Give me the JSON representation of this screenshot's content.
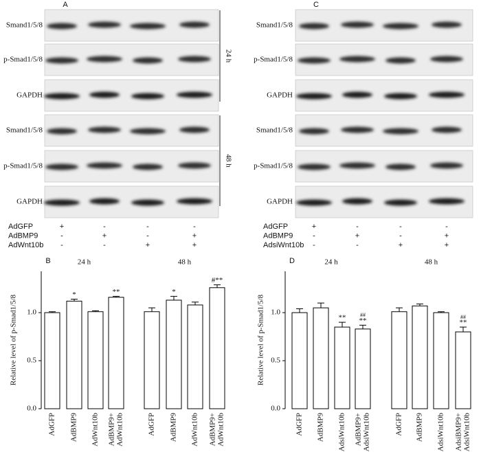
{
  "blots": [
    {
      "panel": "A",
      "rows": [
        "Smand1/5/8",
        "p-Smad1/5/8",
        "GAPDH",
        "Smand1/5/8",
        "p-Smad1/5/8",
        "GAPDH"
      ],
      "time_labels": [
        "24 h",
        "48 h"
      ],
      "treatments": [
        {
          "name": "AdGFP",
          "signs": [
            "+",
            "-",
            "-",
            "-"
          ]
        },
        {
          "name": "AdBMP9",
          "signs": [
            "-",
            "+",
            "-",
            "+"
          ]
        },
        {
          "name": "AdWnt10b",
          "signs": [
            "-",
            "-",
            "+",
            "+"
          ]
        }
      ]
    },
    {
      "panel": "C",
      "rows": [
        "Smand1/5/8",
        "p-Smad1/5/8",
        "GAPDH",
        "Smand1/5/8",
        "p-Smad1/5/8",
        "GAPDH"
      ],
      "treatments": [
        {
          "name": "AdGFP",
          "signs": [
            "+",
            "-",
            "-",
            "-"
          ]
        },
        {
          "name": "AdBMP9",
          "signs": [
            "-",
            "+",
            "-",
            "+"
          ]
        },
        {
          "name": "AdsiWnt10b",
          "signs": [
            "-",
            "-",
            "+",
            "+"
          ]
        }
      ]
    }
  ],
  "chart_data": [
    {
      "type": "bar",
      "panel": "B",
      "ylabel": "Relative level of p-Smad1/5/8",
      "groups": [
        "24 h",
        "48 h"
      ],
      "categories": [
        "AdGFP",
        "AdBMP9",
        "AdWnt10b",
        [
          "AdBMP9+",
          "AdWnt10b"
        ],
        "AdGFP",
        "AdBMP9",
        "AdWnt10b",
        [
          "AdBMP9+",
          "AdWnt10b"
        ]
      ],
      "values": [
        1.0,
        1.12,
        1.01,
        1.16,
        1.01,
        1.13,
        1.08,
        1.26
      ],
      "errors": [
        0.01,
        0.02,
        0.01,
        0.01,
        0.04,
        0.04,
        0.03,
        0.03
      ],
      "annotations": [
        null,
        "*",
        null,
        "**",
        null,
        "*",
        null,
        "#**"
      ],
      "color": "#ffffff",
      "ylim": [
        0,
        1.43
      ],
      "yticks": [
        {
          "value": 0,
          "label": "0.0"
        },
        {
          "value": 0.5,
          "label": "0.5"
        },
        {
          "value": 1,
          "label": "1.0"
        }
      ]
    },
    {
      "type": "bar",
      "panel": "D",
      "ylabel": "Relative level of p-Smad1/5/8",
      "groups": [
        "24 h",
        "48 h"
      ],
      "categories": [
        "AdGFP",
        "AdBMP9",
        "AdsiWnt10b",
        [
          "AdBMP9+",
          "AdsiWnt10b"
        ],
        "AdGFP",
        "AdBMP9",
        "AdsiWnt10b",
        [
          "AdsiBMP9+",
          "AdsiWnt10b"
        ]
      ],
      "values": [
        1.0,
        1.05,
        0.85,
        0.83,
        1.01,
        1.07,
        1.0,
        0.8
      ],
      "errors": [
        0.04,
        0.05,
        0.05,
        0.04,
        0.04,
        0.02,
        0.01,
        0.05
      ],
      "annotations": [
        null,
        null,
        [
          "**"
        ],
        [
          "##",
          "**"
        ],
        null,
        null,
        null,
        [
          "##",
          "**"
        ]
      ],
      "color": "#ffffff",
      "ylim": [
        0,
        1.43
      ],
      "yticks": [
        {
          "value": 0,
          "label": "0.0"
        },
        {
          "value": 0.5,
          "label": "0.5"
        },
        {
          "value": 1,
          "label": "1.0"
        }
      ]
    }
  ]
}
